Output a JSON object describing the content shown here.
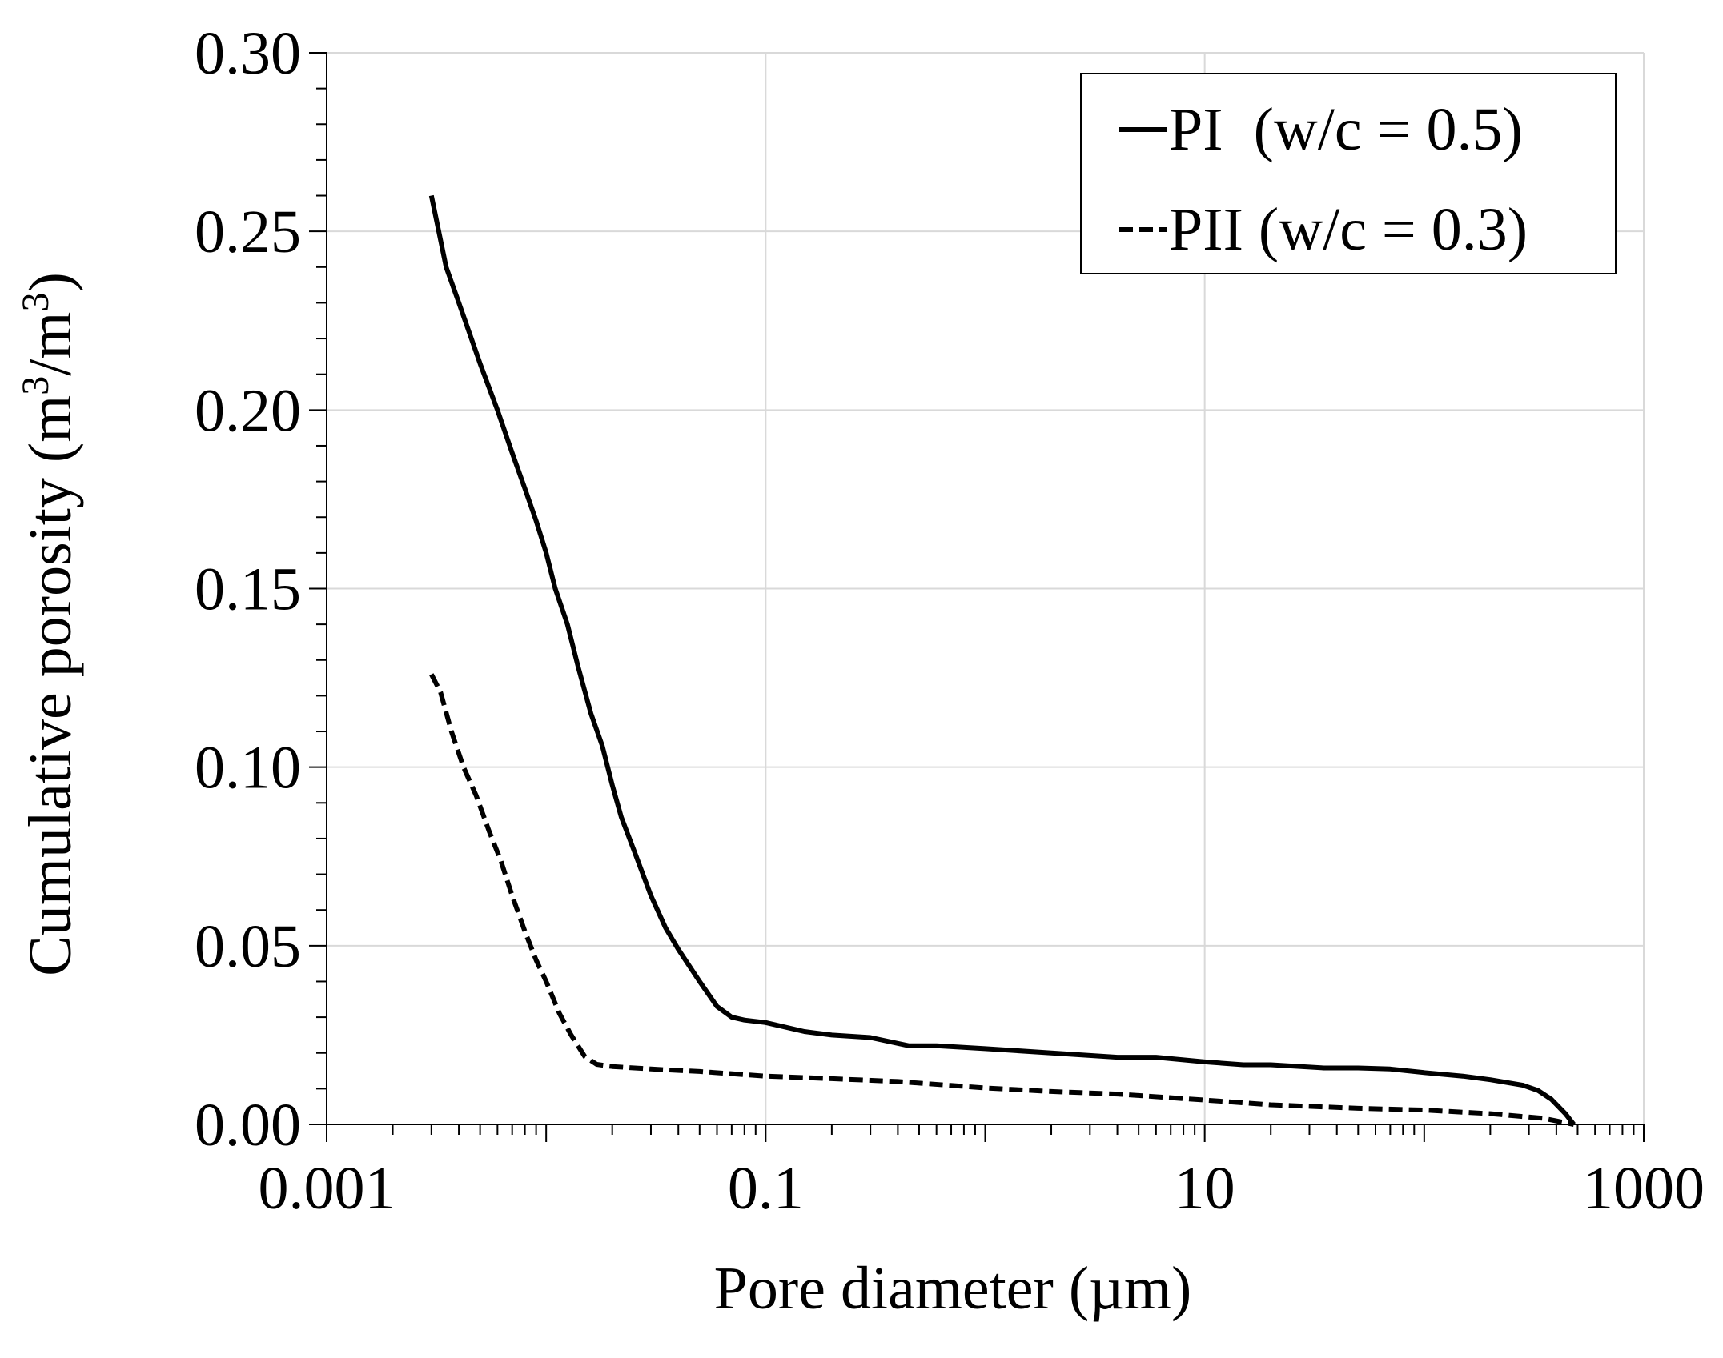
{
  "chart_data": {
    "type": "line",
    "title": "",
    "xlabel": "Pore diameter (µm)",
    "ylabel_main": "Cumulative porosity (m",
    "ylabel_sup1": "3",
    "ylabel_mid": "/m",
    "ylabel_sup2": "3",
    "ylabel_end": ")",
    "x_scale": "log",
    "xlim": [
      0.001,
      1000
    ],
    "ylim": [
      0,
      0.3
    ],
    "x_tick_values": [
      0.001,
      0.1,
      10,
      1000
    ],
    "x_tick_labels": [
      "0.001",
      "0.1",
      "10",
      "1000"
    ],
    "y_tick_values": [
      0,
      0.05,
      0.1,
      0.15,
      0.2,
      0.25,
      0.3
    ],
    "y_tick_labels": [
      "0.00",
      "0.05",
      "0.10",
      "0.15",
      "0.20",
      "0.25",
      "0.30"
    ],
    "grid": true,
    "legend_position": "top-right",
    "series": [
      {
        "name": "PI  (w/c = 0.5)",
        "style": "solid",
        "color": "#000000",
        "points": [
          [
            0.003,
            0.26
          ],
          [
            0.0035,
            0.24
          ],
          [
            0.004,
            0.23
          ],
          [
            0.005,
            0.213
          ],
          [
            0.006,
            0.2
          ],
          [
            0.007,
            0.188
          ],
          [
            0.008,
            0.178
          ],
          [
            0.009,
            0.169
          ],
          [
            0.01,
            0.16
          ],
          [
            0.011,
            0.15
          ],
          [
            0.0125,
            0.14
          ],
          [
            0.014,
            0.128
          ],
          [
            0.016,
            0.115
          ],
          [
            0.018,
            0.106
          ],
          [
            0.02,
            0.095
          ],
          [
            0.022,
            0.086
          ],
          [
            0.025,
            0.077
          ],
          [
            0.03,
            0.064
          ],
          [
            0.035,
            0.055
          ],
          [
            0.04,
            0.049
          ],
          [
            0.05,
            0.04
          ],
          [
            0.06,
            0.033
          ],
          [
            0.07,
            0.03
          ],
          [
            0.08,
            0.0292
          ],
          [
            0.1,
            0.0285
          ],
          [
            0.15,
            0.026
          ],
          [
            0.2,
            0.025
          ],
          [
            0.3,
            0.0243
          ],
          [
            0.45,
            0.022
          ],
          [
            0.6,
            0.022
          ],
          [
            1,
            0.0212
          ],
          [
            2,
            0.02
          ],
          [
            4,
            0.0188
          ],
          [
            6,
            0.0188
          ],
          [
            10,
            0.0175
          ],
          [
            15,
            0.0167
          ],
          [
            20,
            0.0167
          ],
          [
            35,
            0.0158
          ],
          [
            50,
            0.0158
          ],
          [
            70,
            0.0155
          ],
          [
            100,
            0.0145
          ],
          [
            150,
            0.0135
          ],
          [
            200,
            0.0125
          ],
          [
            280,
            0.011
          ],
          [
            330,
            0.0095
          ],
          [
            380,
            0.007
          ],
          [
            440,
            0.003
          ],
          [
            480,
            0.0
          ]
        ]
      },
      {
        "name": "PII (w/c = 0.3)",
        "style": "dashed",
        "color": "#000000",
        "points": [
          [
            0.003,
            0.126
          ],
          [
            0.0033,
            0.121
          ],
          [
            0.0037,
            0.11
          ],
          [
            0.0042,
            0.1
          ],
          [
            0.0048,
            0.092
          ],
          [
            0.0055,
            0.082
          ],
          [
            0.0062,
            0.074
          ],
          [
            0.007,
            0.064
          ],
          [
            0.008,
            0.054
          ],
          [
            0.009,
            0.046
          ],
          [
            0.01,
            0.04
          ],
          [
            0.0115,
            0.031
          ],
          [
            0.013,
            0.025
          ],
          [
            0.015,
            0.019
          ],
          [
            0.017,
            0.0168
          ],
          [
            0.02,
            0.0162
          ],
          [
            0.03,
            0.0155
          ],
          [
            0.05,
            0.0148
          ],
          [
            0.1,
            0.0135
          ],
          [
            0.2,
            0.0128
          ],
          [
            0.4,
            0.012
          ],
          [
            1,
            0.0102
          ],
          [
            2,
            0.0092
          ],
          [
            4,
            0.0085
          ],
          [
            10,
            0.0068
          ],
          [
            20,
            0.0055
          ],
          [
            50,
            0.0045
          ],
          [
            100,
            0.004
          ],
          [
            200,
            0.003
          ],
          [
            350,
            0.0017
          ],
          [
            480,
            0.0
          ]
        ]
      }
    ]
  }
}
